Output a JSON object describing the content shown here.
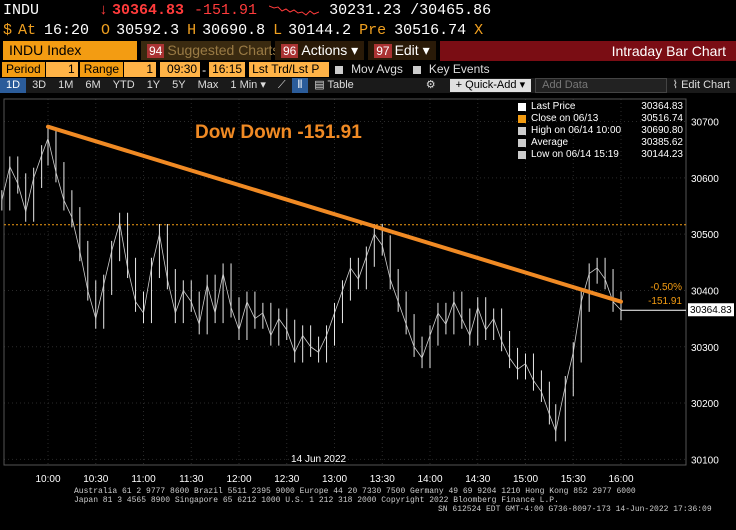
{
  "quote": {
    "ticker": "INDU",
    "last": "30364.83",
    "change": "-151.91",
    "bid_ask": "30231.23 /30465.86",
    "at_label": "At",
    "time": "16:20",
    "open_label": "O",
    "open": "30592.3",
    "high_label": "H",
    "high": "30690.8",
    "low_label": "L",
    "low": "30144.2",
    "pre_label": "Pre",
    "pre": "30516.74",
    "close_icon": "X"
  },
  "function_bar": {
    "security": "INDU Index",
    "suggested_num": "94",
    "suggested": "Suggested Charts",
    "actions_num": "96",
    "actions": "Actions",
    "edit_num": "97",
    "edit": "Edit",
    "title": "Intraday Bar Chart"
  },
  "settings": {
    "period_label": "Period",
    "period_value": "1",
    "range_label": "Range",
    "range_value": "1",
    "range_start": "09:30",
    "range_end": "16:15",
    "last_trade": "Lst Trd/Lst P",
    "mov_avgs": "Mov Avgs",
    "key_events": "Key Events"
  },
  "toolbar": {
    "ranges": [
      "1D",
      "3D",
      "1M",
      "6M",
      "YTD",
      "1Y",
      "5Y",
      "Max"
    ],
    "interval": "1 Min",
    "table": "Table",
    "quick_add": "Quick-Add",
    "add_data_placeholder": "Add Data",
    "edit_chart": "Edit Chart"
  },
  "annotation": "Dow Down -151.91",
  "legend": [
    {
      "label": "Last Price",
      "value": "30364.83",
      "color": "#ffffff"
    },
    {
      "label": "Close on 06/13",
      "value": "30516.74",
      "color": "#f39c12"
    },
    {
      "label": "High on 06/14 10:00",
      "value": "30690.80",
      "color": "#cccccc"
    },
    {
      "label": "Average",
      "value": "30385.62",
      "color": "#cccccc"
    },
    {
      "label": "Low on 06/14 15:19",
      "value": "30144.23",
      "color": "#cccccc"
    }
  ],
  "chart_data": {
    "type": "bar",
    "date_label": "14 Jun 2022",
    "x_ticks": [
      "10:00",
      "10:30",
      "11:00",
      "11:30",
      "12:00",
      "12:30",
      "13:00",
      "13:30",
      "14:00",
      "14:30",
      "15:00",
      "15:30",
      "16:00"
    ],
    "y_ticks": [
      30100,
      30200,
      30300,
      30400,
      30500,
      30600,
      30700
    ],
    "ylim": [
      30090,
      30740
    ],
    "prev_close": 30516.74,
    "last_price": 30364.83,
    "pct_change_label": "-0.50%",
    "change_label": "-151.91",
    "last_price_label": "30364.83",
    "series": [
      {
        "name": "Last Price",
        "x": [
          "09:31",
          "09:36",
          "09:41",
          "09:46",
          "09:51",
          "09:56",
          "10:00",
          "10:05",
          "10:10",
          "10:15",
          "10:20",
          "10:25",
          "10:30",
          "10:35",
          "10:40",
          "10:45",
          "10:50",
          "10:55",
          "11:00",
          "11:05",
          "11:10",
          "11:15",
          "11:20",
          "11:25",
          "11:30",
          "11:35",
          "11:40",
          "11:45",
          "11:50",
          "11:55",
          "12:00",
          "12:05",
          "12:10",
          "12:15",
          "12:20",
          "12:25",
          "12:30",
          "12:35",
          "12:40",
          "12:45",
          "12:50",
          "12:55",
          "13:00",
          "13:05",
          "13:10",
          "13:15",
          "13:20",
          "13:25",
          "13:30",
          "13:35",
          "13:40",
          "13:45",
          "13:50",
          "13:55",
          "14:00",
          "14:05",
          "14:10",
          "14:15",
          "14:20",
          "14:25",
          "14:30",
          "14:35",
          "14:40",
          "14:45",
          "14:50",
          "14:55",
          "15:00",
          "15:05",
          "15:10",
          "15:15",
          "15:19",
          "15:25",
          "15:30",
          "15:35",
          "15:40",
          "15:45",
          "15:50",
          "15:55",
          "16:00"
        ],
        "values": [
          30560,
          30620,
          30590,
          30540,
          30600,
          30640,
          30670,
          30610,
          30560,
          30530,
          30470,
          30400,
          30350,
          30410,
          30470,
          30520,
          30440,
          30380,
          30360,
          30440,
          30500,
          30420,
          30360,
          30400,
          30380,
          30340,
          30410,
          30360,
          30430,
          30370,
          30330,
          30380,
          30350,
          30360,
          30320,
          30350,
          30330,
          30290,
          30320,
          30300,
          30290,
          30320,
          30360,
          30400,
          30440,
          30420,
          30460,
          30500,
          30480,
          30420,
          30380,
          30340,
          30300,
          30280,
          30320,
          30360,
          30340,
          30380,
          30350,
          30320,
          30370,
          30330,
          30350,
          30310,
          30280,
          30260,
          30270,
          30240,
          30220,
          30180,
          30150,
          30230,
          30290,
          30380,
          30430,
          30440,
          30420,
          30380,
          30365
        ]
      }
    ]
  },
  "footer": {
    "line1": "Australia 61 2 9777 8600 Brazil 5511 2395 9000 Europe 44 20 7330 7500 Germany 49 69 9204 1210 Hong Kong 852 2977 6000",
    "line2": "Japan 81 3 4565 8900        Singapore 65 6212 1000        U.S. 1 212 318 2000              Copyright 2022 Bloomberg Finance L.P.",
    "line3": "SN 612524 EDT  GMT-4:00 G736-8097-173 14-Jun-2022 17:36:09"
  }
}
